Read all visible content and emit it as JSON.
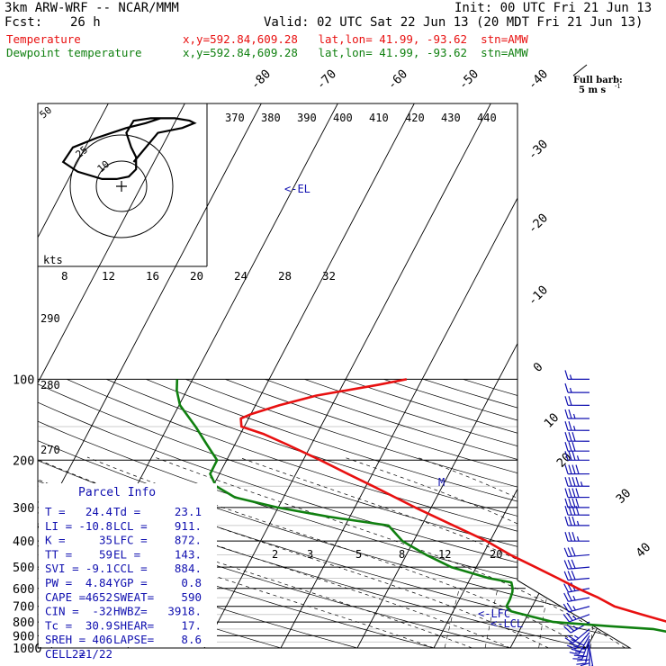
{
  "header": {
    "model": "3km ARW-WRF -- NCAR/MMM",
    "init": "Init: 00 UTC Fri 21 Jun 13",
    "fcst_label": "Fcst:",
    "fcst_value": "26 h",
    "valid": "Valid: 02 UTC Sat 22 Jun 13 (20 MDT Fri 21 Jun 13)",
    "temperature_label": "Temperature",
    "temperature_loc": "x,y=592.84,609.28   lat,lon= 41.99, -93.62  stn=AMW",
    "dewpoint_label": "Dewpoint temperature",
    "dewpoint_loc": "x,y=592.84,609.28   lat,lon= 41.99, -93.62  stn=AMW"
  },
  "colors": {
    "temperature": "#e81010",
    "dewpoint": "#108010",
    "barbs": "#1010b0",
    "grid": "#000000"
  },
  "barb_legend": {
    "title": "Full barb:",
    "value": "5 m s",
    "unit_exp": "-1"
  },
  "parcel_info": {
    "title": "Parcel Info",
    "rows": [
      [
        "T  =",
        "24.4",
        "Td =",
        "23.1"
      ],
      [
        "LI =",
        "-10.8",
        "LCL =",
        "911."
      ],
      [
        "K  =",
        "35",
        "LFC =",
        "872."
      ],
      [
        "TT =",
        "59",
        "EL  =",
        "143."
      ],
      [
        "SVI =",
        "-9.1",
        "CCL =",
        "884."
      ],
      [
        "PW  =",
        "4.84",
        "YGP =",
        "0.8"
      ],
      [
        "CAPE =",
        "4652",
        "SWEAT=",
        "590"
      ],
      [
        "CIN  =",
        "-32",
        "HWBZ=",
        "3918."
      ],
      [
        "Tc   =",
        "30.9",
        "SHEAR=",
        "17."
      ],
      [
        "SREH =",
        "406",
        "LAPSE=",
        "8.6"
      ],
      [
        "CELL =",
        "221/22",
        "",
        ""
      ]
    ]
  },
  "annotations": {
    "el": "<-EL",
    "lfc": "<-LFC",
    "lcl": "<-LCL",
    "m": "M",
    "kts": "kts"
  },
  "hodograph": {
    "ring_labels": [
      "10",
      "25",
      "50"
    ]
  },
  "chart_data": {
    "type": "line",
    "title": "",
    "xlabel": "",
    "ylabel": "",
    "y_scale": "log-p (skew-T)",
    "pressure_ticks": [
      100,
      200,
      300,
      400,
      500,
      600,
      700,
      800,
      900,
      1000
    ],
    "pressure_ticks_labeled": [
      "100",
      "200",
      "300",
      "400",
      "500",
      "600",
      "700",
      "800",
      "900",
      "1000"
    ],
    "isotherm_labels_top": [
      "-80",
      "-70",
      "-60",
      "-50",
      "-40"
    ],
    "isotherm_labels_right": [
      "-30",
      "-20",
      "-10",
      "0",
      "10",
      "20",
      "30",
      "40"
    ],
    "theta_labels": [
      "370",
      "380",
      "390",
      "400",
      "410",
      "420",
      "430",
      "440"
    ],
    "theta_labels_left": [
      "290",
      "280",
      "270"
    ],
    "mixing_ratio_labels": [
      "2",
      "3",
      "5",
      "8",
      "12",
      "20"
    ],
    "hodo_speed_labels": [
      "8",
      "12",
      "16",
      "20",
      "24",
      "28",
      "32"
    ],
    "series": [
      {
        "name": "Temperature",
        "points": [
          [
            1000,
            24.4
          ],
          [
            985,
            25.5
          ],
          [
            960,
            24
          ],
          [
            935,
            22.8
          ],
          [
            925,
            22.5
          ],
          [
            900,
            21.2
          ],
          [
            850,
            19.6
          ],
          [
            800,
            17
          ],
          [
            750,
            12.5
          ],
          [
            700,
            7.8
          ],
          [
            650,
            4.5
          ],
          [
            600,
            0.5
          ],
          [
            550,
            -3.5
          ],
          [
            500,
            -8
          ],
          [
            450,
            -13
          ],
          [
            400,
            -18
          ],
          [
            350,
            -24.5
          ],
          [
            300,
            -32
          ],
          [
            250,
            -40.5
          ],
          [
            225,
            -45.5
          ],
          [
            200,
            -51
          ],
          [
            175,
            -57.5
          ],
          [
            160,
            -62
          ],
          [
            150,
            -66
          ],
          [
            140,
            -67.2
          ],
          [
            135,
            -66.5
          ],
          [
            125,
            -64
          ],
          [
            115,
            -60.5
          ],
          [
            105,
            -54
          ],
          [
            100,
            -51
          ]
        ]
      },
      {
        "name": "Dewpoint temperature",
        "points": [
          [
            985,
            23.1
          ],
          [
            960,
            22.3
          ],
          [
            935,
            22
          ],
          [
            900,
            20.7
          ],
          [
            875,
            18.8
          ],
          [
            850,
            16
          ],
          [
            830,
            10
          ],
          [
            800,
            2
          ],
          [
            760,
            -2
          ],
          [
            730,
            -5
          ],
          [
            700,
            -6.3
          ],
          [
            660,
            -6.8
          ],
          [
            620,
            -7.5
          ],
          [
            600,
            -8
          ],
          [
            570,
            -9
          ],
          [
            550,
            -12.5
          ],
          [
            500,
            -19
          ],
          [
            450,
            -24
          ],
          [
            400,
            -29
          ],
          [
            350,
            -33
          ],
          [
            325,
            -42
          ],
          [
            300,
            -50
          ],
          [
            275,
            -57
          ],
          [
            250,
            -61
          ],
          [
            225,
            -63.5
          ],
          [
            200,
            -64.5
          ],
          [
            175,
            -68
          ],
          [
            150,
            -72
          ],
          [
            125,
            -77
          ],
          [
            110,
            -79.5
          ],
          [
            100,
            -81
          ]
        ]
      }
    ],
    "wind_barbs": [
      {
        "p": 1000,
        "dir": 170,
        "spd": 15
      },
      {
        "p": 975,
        "dir": 180,
        "spd": 25
      },
      {
        "p": 950,
        "dir": 190,
        "spd": 30
      },
      {
        "p": 925,
        "dir": 200,
        "spd": 35
      },
      {
        "p": 900,
        "dir": 210,
        "spd": 35
      },
      {
        "p": 875,
        "dir": 220,
        "spd": 30
      },
      {
        "p": 850,
        "dir": 230,
        "spd": 25
      },
      {
        "p": 800,
        "dir": 240,
        "spd": 25
      },
      {
        "p": 750,
        "dir": 250,
        "spd": 25
      },
      {
        "p": 700,
        "dir": 255,
        "spd": 25
      },
      {
        "p": 650,
        "dir": 260,
        "spd": 25
      },
      {
        "p": 600,
        "dir": 260,
        "spd": 30
      },
      {
        "p": 550,
        "dir": 265,
        "spd": 30
      },
      {
        "p": 500,
        "dir": 265,
        "spd": 30
      },
      {
        "p": 450,
        "dir": 265,
        "spd": 30
      },
      {
        "p": 400,
        "dir": 270,
        "spd": 35
      },
      {
        "p": 350,
        "dir": 270,
        "spd": 35
      },
      {
        "p": 320,
        "dir": 270,
        "spd": 40
      },
      {
        "p": 300,
        "dir": 270,
        "spd": 40
      },
      {
        "p": 275,
        "dir": 270,
        "spd": 40
      },
      {
        "p": 250,
        "dir": 270,
        "spd": 45
      },
      {
        "p": 225,
        "dir": 270,
        "spd": 40
      },
      {
        "p": 200,
        "dir": 270,
        "spd": 35
      },
      {
        "p": 185,
        "dir": 270,
        "spd": 30
      },
      {
        "p": 170,
        "dir": 270,
        "spd": 30
      },
      {
        "p": 155,
        "dir": 270,
        "spd": 25
      },
      {
        "p": 140,
        "dir": 270,
        "spd": 25
      },
      {
        "p": 125,
        "dir": 270,
        "spd": 20
      },
      {
        "p": 112,
        "dir": 270,
        "spd": 15
      },
      {
        "p": 100,
        "dir": 270,
        "spd": 15
      }
    ],
    "hodograph_winds_kts": [
      [
        5,
        10
      ],
      [
        15,
        22
      ],
      [
        25,
        24
      ],
      [
        30,
        26
      ],
      [
        28,
        27
      ],
      [
        22,
        28
      ],
      [
        12,
        28
      ],
      [
        5,
        27
      ],
      [
        2,
        22
      ],
      [
        4,
        16
      ],
      [
        6,
        12
      ],
      [
        6,
        7
      ],
      [
        3,
        4
      ],
      [
        -2,
        3
      ],
      [
        -8,
        3
      ],
      [
        -18,
        6
      ],
      [
        -24,
        10
      ],
      [
        -20,
        16
      ],
      [
        -10,
        20
      ],
      [
        2,
        24
      ],
      [
        10,
        26
      ],
      [
        16,
        28
      ]
    ]
  }
}
